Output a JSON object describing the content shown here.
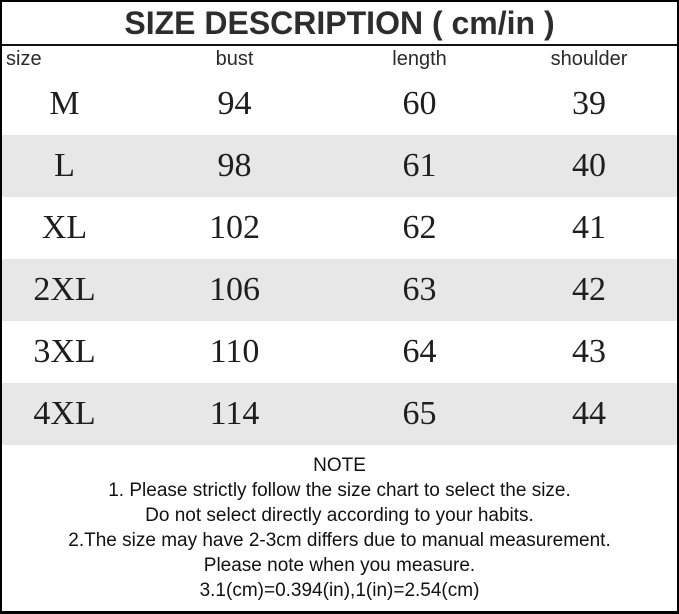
{
  "title": "SIZE DESCRIPTION ( cm/in )",
  "table": {
    "columns": {
      "size": "size",
      "bust": "bust",
      "length": "length",
      "shoulder": "shoulder"
    },
    "rows": [
      {
        "size": "M",
        "bust": "94",
        "length": "60",
        "shoulder": "39"
      },
      {
        "size": "L",
        "bust": "98",
        "length": "61",
        "shoulder": "40"
      },
      {
        "size": "XL",
        "bust": "102",
        "length": "62",
        "shoulder": "41"
      },
      {
        "size": "2XL",
        "bust": "106",
        "length": "63",
        "shoulder": "42"
      },
      {
        "size": "3XL",
        "bust": "110",
        "length": "64",
        "shoulder": "43"
      },
      {
        "size": "4XL",
        "bust": "114",
        "length": "65",
        "shoulder": "44"
      }
    ]
  },
  "note": {
    "heading": "NOTE",
    "lines": [
      "1. Please strictly follow the size chart to select the size.",
      "Do not select directly according to your habits.",
      "2.The size may have 2-3cm differs due to manual measurement.",
      "Please note when you measure.",
      "3.1(cm)=0.394(in),1(in)=2.54(cm)"
    ]
  },
  "colors": {
    "stripe": "#e7e7e7",
    "border": "#000000",
    "title_text": "#2d2d2d",
    "body_text": "#1e1e1e"
  }
}
